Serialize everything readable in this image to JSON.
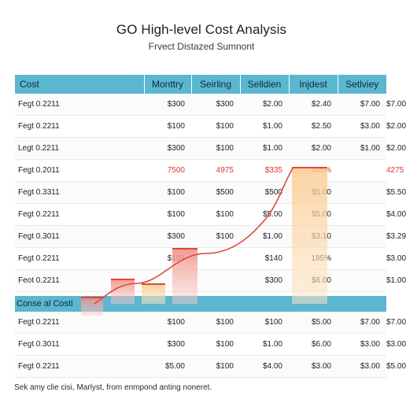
{
  "header": {
    "title": "GO High-level Cost Analysis",
    "subtitle": "Frvect Distazed Sumnont"
  },
  "table": {
    "columns": [
      "Cost",
      "Monttry",
      "Seirling",
      "Selldien",
      "Injdest",
      "Setlviey"
    ],
    "rows": [
      {
        "label": "Fegt 0.2211",
        "values": [
          "$300",
          "$300",
          "$2.00",
          "$2.40",
          "$7.00",
          "$7.00"
        ]
      },
      {
        "label": "Fegt 0.2211",
        "values": [
          "$100",
          "$100",
          "$1.00",
          "$2.50",
          "$3.00",
          "$2.00"
        ]
      },
      {
        "label": "Legt 0.2211",
        "values": [
          "$300",
          "$100",
          "$1.00",
          "$2.00",
          "$1.00",
          "$2.00"
        ]
      },
      {
        "label": "Fegt 0.2011",
        "values": [
          "7500",
          "4975",
          "$335",
          "485%",
          "",
          "4275"
        ]
      },
      {
        "label": "Fegt 0.3311",
        "values": [
          "$100",
          "$500",
          "$500",
          "$5.00",
          "",
          "$5.50"
        ]
      },
      {
        "label": "Fegt 0.2211",
        "values": [
          "$100",
          "$100",
          "$5.00",
          "$5.00",
          "",
          "$4.00"
        ]
      },
      {
        "label": "Fegt 0.3011",
        "values": [
          "$300",
          "$100",
          "$1.00",
          "$3.10",
          "",
          "$3.29"
        ]
      },
      {
        "label": "Fegt 0.2211",
        "values": [
          "$101",
          "",
          "$140",
          "185%",
          "",
          "$3.00"
        ]
      },
      {
        "label": "Feot 0.2211",
        "values": [
          "",
          "",
          "$300",
          "$6.00",
          "",
          "$1.00"
        ]
      }
    ],
    "highlight_row_index": 3,
    "section_label": "Conse al Costi",
    "bottom_rows": [
      {
        "label": "Fegt 0.2211",
        "values": [
          "$100",
          "$100",
          "$100",
          "$5.00",
          "$7.00",
          "$7.00"
        ]
      },
      {
        "label": "Fegt 0.3011",
        "values": [
          "$300",
          "$100",
          "$1.00",
          "$6.00",
          "$3.00",
          "$3.00"
        ]
      },
      {
        "label": "Fegt 0.2211",
        "values": [
          "$5.00",
          "$100",
          "$4.00",
          "$3.00",
          "$3.00",
          "$5.00"
        ]
      }
    ]
  },
  "footnote": "Sek amy clie cisi, Marlyst, from enmpond anting noneret.",
  "colors": {
    "header": "#5bb6d0",
    "accent_red": "#e0473c",
    "bar_pink": "#f4a7a0",
    "bar_peach": "#fbd6a6"
  }
}
